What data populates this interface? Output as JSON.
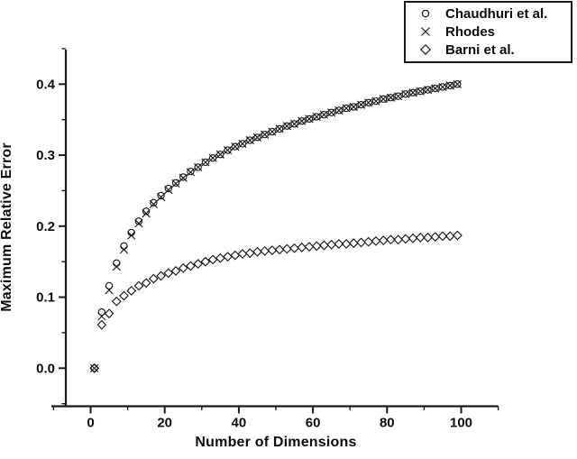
{
  "figure": {
    "background": "#ffffff",
    "ink": "#1a1a1a"
  },
  "legend": {
    "items": [
      {
        "label": "Chaudhuri et al.",
        "marker": "circle"
      },
      {
        "label": "Rhodes",
        "marker": "x"
      },
      {
        "label": "Barni et al.",
        "marker": "diamond"
      }
    ]
  },
  "chart_data": {
    "type": "scatter",
    "title": "",
    "xlabel": "Number of Dimensions",
    "ylabel": "Maximum Relative Error",
    "xlim": [
      -7,
      110
    ],
    "ylim": [
      -0.054,
      0.449
    ],
    "x_ticks": [
      0,
      20,
      40,
      60,
      80,
      100
    ],
    "x_tick_labels": [
      "0",
      "20",
      "40",
      "60",
      "80",
      "100"
    ],
    "x_minor_ticks": [
      -10,
      10,
      30,
      50,
      70,
      90,
      110
    ],
    "y_ticks": [
      0.0,
      0.1,
      0.2,
      0.3,
      0.4
    ],
    "y_tick_labels": [
      "0.0",
      "0.1",
      "0.2",
      "0.3",
      "0.4"
    ],
    "y_minor_ticks": [
      -0.05,
      0.05,
      0.15,
      0.25,
      0.35,
      0.45
    ],
    "grid": false,
    "legend_position": "top-right",
    "x": [
      1,
      3,
      5,
      7,
      9,
      11,
      13,
      15,
      17,
      19,
      21,
      23,
      25,
      27,
      29,
      31,
      33,
      35,
      37,
      39,
      41,
      43,
      45,
      47,
      49,
      51,
      53,
      55,
      57,
      59,
      61,
      63,
      65,
      67,
      69,
      71,
      73,
      75,
      77,
      79,
      81,
      83,
      85,
      87,
      89,
      91,
      93,
      95,
      97,
      99
    ],
    "series": [
      {
        "name": "Chaudhuri et al.",
        "marker": "circle",
        "values": [
          0.0,
          0.079,
          0.116,
          0.148,
          0.172,
          0.191,
          0.207,
          0.221,
          0.233,
          0.243,
          0.253,
          0.261,
          0.269,
          0.277,
          0.283,
          0.29,
          0.296,
          0.301,
          0.307,
          0.312,
          0.316,
          0.321,
          0.325,
          0.329,
          0.333,
          0.337,
          0.341,
          0.344,
          0.348,
          0.351,
          0.354,
          0.357,
          0.36,
          0.363,
          0.366,
          0.368,
          0.371,
          0.374,
          0.376,
          0.379,
          0.381,
          0.383,
          0.386,
          0.388,
          0.39,
          0.392,
          0.394,
          0.396,
          0.398,
          0.4
        ]
      },
      {
        "name": "Rhodes",
        "marker": "x",
        "values": [
          0.0,
          0.073,
          0.11,
          0.143,
          0.167,
          0.187,
          0.204,
          0.218,
          0.231,
          0.241,
          0.251,
          0.26,
          0.268,
          0.276,
          0.283,
          0.29,
          0.296,
          0.301,
          0.307,
          0.312,
          0.316,
          0.321,
          0.325,
          0.329,
          0.333,
          0.337,
          0.341,
          0.344,
          0.348,
          0.351,
          0.354,
          0.357,
          0.36,
          0.363,
          0.366,
          0.368,
          0.371,
          0.374,
          0.376,
          0.379,
          0.381,
          0.383,
          0.386,
          0.388,
          0.39,
          0.392,
          0.394,
          0.396,
          0.398,
          0.4
        ]
      },
      {
        "name": "Barni et al.",
        "marker": "diamond",
        "values": [
          0.0,
          0.061,
          0.077,
          0.094,
          0.102,
          0.109,
          0.116,
          0.12,
          0.126,
          0.13,
          0.134,
          0.137,
          0.141,
          0.144,
          0.147,
          0.15,
          0.153,
          0.155,
          0.157,
          0.159,
          0.161,
          0.162,
          0.164,
          0.165,
          0.166,
          0.167,
          0.168,
          0.169,
          0.17,
          0.171,
          0.172,
          0.173,
          0.174,
          0.175,
          0.175,
          0.176,
          0.177,
          0.178,
          0.179,
          0.18,
          0.181,
          0.181,
          0.182,
          0.183,
          0.184,
          0.184,
          0.185,
          0.186,
          0.186,
          0.187
        ]
      }
    ]
  }
}
